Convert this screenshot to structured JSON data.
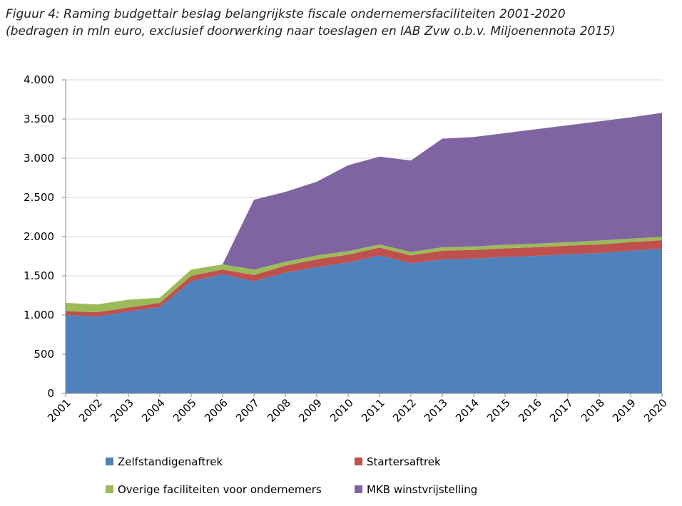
{
  "chart_data": {
    "type": "stacked-area",
    "title": "Figuur 4: Raming budgettair beslag belangrijkste fiscale ondernemersfaciliteiten 2001-2020",
    "subtitle": "(bedragen in mln euro, exclusief doorwerking naar toeslagen en IAB Zvw o.b.v. Miljoenennota 2015)",
    "categories": [
      "2001",
      "2002",
      "2003",
      "2004",
      "2005",
      "2006",
      "2007",
      "2008",
      "2009",
      "2010",
      "2011",
      "2012",
      "2013",
      "2014",
      "2015",
      "2016",
      "2017",
      "2018",
      "2019",
      "2020"
    ],
    "series": [
      {
        "name": "Zelfstandigenaftrek",
        "color": "#4f81bd",
        "values": [
          1000,
          980,
          1045,
          1100,
          1430,
          1520,
          1430,
          1540,
          1610,
          1670,
          1760,
          1660,
          1710,
          1720,
          1740,
          1755,
          1775,
          1790,
          1820,
          1845
        ]
      },
      {
        "name": "Startersaftrek",
        "color": "#c0504d",
        "values": [
          50,
          55,
          50,
          55,
          70,
          60,
          80,
          90,
          100,
          100,
          100,
          100,
          110,
          110,
          110,
          110,
          110,
          110,
          110,
          110
        ]
      },
      {
        "name": "Overige faciliteiten voor ondernemers",
        "color": "#9bbb59",
        "values": [
          105,
          100,
          100,
          65,
          80,
          65,
          70,
          50,
          50,
          45,
          40,
          45,
          45,
          45,
          45,
          45,
          45,
          50,
          45,
          40
        ]
      },
      {
        "name": "MKB winstvrijstelling",
        "color": "#8064a2",
        "values": [
          0,
          0,
          0,
          0,
          0,
          0,
          890,
          890,
          940,
          1095,
          1120,
          1165,
          1385,
          1395,
          1425,
          1460,
          1490,
          1520,
          1545,
          1585
        ]
      }
    ],
    "ylim": [
      0,
      4000
    ],
    "yticks": [
      0,
      500,
      {
        "value": 1000,
        "label": "1.000"
      },
      {
        "value": 1500,
        "label": "1.500"
      },
      {
        "value": 2000,
        "label": "2.000"
      },
      {
        "value": 2500,
        "label": "2.500"
      },
      {
        "value": 3000,
        "label": "3.000"
      },
      {
        "value": 3500,
        "label": "3.500"
      },
      {
        "value": 4000,
        "label": "4.000"
      }
    ],
    "grid": true
  }
}
